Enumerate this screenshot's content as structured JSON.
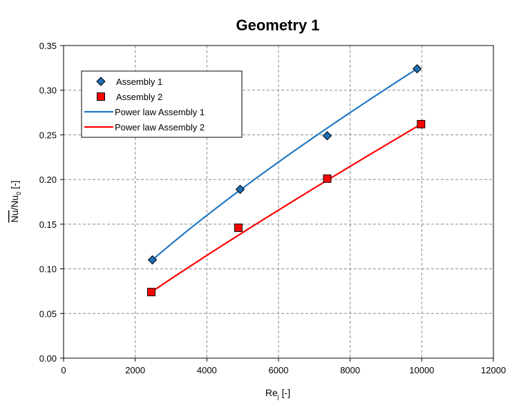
{
  "chart_data": {
    "type": "scatter",
    "title": "Geometry 1",
    "xlabel": {
      "base": "Re",
      "sub": "j",
      "rest": " [-]"
    },
    "ylabel": {
      "over": "Nu",
      "mid": "/Nu",
      "sub": "0",
      "rest": " [-]"
    },
    "xlim": [
      0,
      12000
    ],
    "ylim": [
      0,
      0.35
    ],
    "xticks": [
      0,
      2000,
      4000,
      6000,
      8000,
      10000,
      12000
    ],
    "xtick_labels": [
      "0",
      "2000",
      "4000",
      "6000",
      "8000",
      "10000",
      "12000"
    ],
    "yticks": [
      0,
      0.05,
      0.1,
      0.15,
      0.2,
      0.25,
      0.3,
      0.35
    ],
    "ytick_labels": [
      "0.00",
      "0.05",
      "0.10",
      "0.15",
      "0.20",
      "0.25",
      "0.30",
      "0.35"
    ],
    "grid": true,
    "legend_position": "top-left",
    "series": [
      {
        "name": "Assembly 1",
        "kind": "points",
        "marker": "diamond",
        "color": "#1f6fb5",
        "x": [
          2480,
          4930,
          7360,
          9870
        ],
        "y": [
          0.11,
          0.189,
          0.249,
          0.324
        ]
      },
      {
        "name": "Assembly 2",
        "kind": "points",
        "marker": "square",
        "color": "#ff0000",
        "x": [
          2450,
          4880,
          7360,
          9980
        ],
        "y": [
          0.074,
          0.146,
          0.201,
          0.262
        ]
      },
      {
        "name": "Power law Assembly 1",
        "kind": "fit",
        "color": "#1f77c4",
        "x_range": [
          2480,
          9870
        ],
        "fit_points": {
          "x": [
            2480,
            9870
          ],
          "y": [
            0.11,
            0.324
          ]
        }
      },
      {
        "name": "Power law Assembly 2",
        "kind": "fit",
        "color": "#ff0000",
        "x_range": [
          2450,
          9980
        ],
        "fit_points": {
          "x": [
            2450,
            9980
          ],
          "y": [
            0.074,
            0.262
          ]
        }
      }
    ]
  }
}
